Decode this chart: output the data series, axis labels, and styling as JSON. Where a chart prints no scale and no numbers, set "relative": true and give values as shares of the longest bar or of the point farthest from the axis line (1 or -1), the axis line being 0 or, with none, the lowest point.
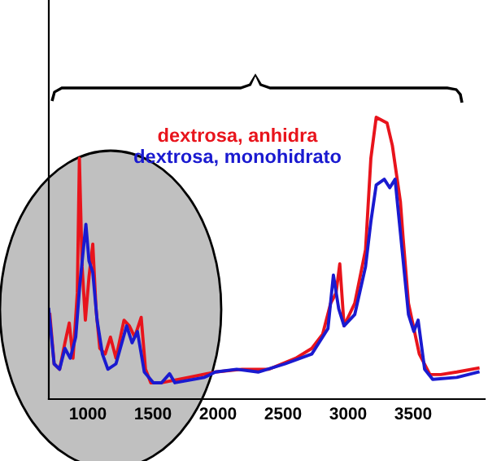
{
  "chart_data": {
    "type": "line",
    "relative": true,
    "legend": false,
    "grid": false,
    "marker": "none",
    "line_style": "solid",
    "tick_labels": "x",
    "xlim": [
      700,
      4050
    ],
    "xticks": [
      1000,
      1500,
      2000,
      2500,
      3000,
      3500
    ],
    "series": [
      {
        "name": "dextrosa, anhidra",
        "color": "#e8141c",
        "x": [
          708,
          741,
          783,
          824,
          857,
          886,
          919,
          935,
          956,
          981,
          1009,
          1038,
          1063,
          1092,
          1133,
          1174,
          1216,
          1278,
          1319,
          1360,
          1410,
          1443,
          1484,
          1566,
          1773,
          1979,
          2185,
          2392,
          2597,
          2721,
          2804,
          2866,
          2907,
          2936,
          2969,
          3051,
          3134,
          3175,
          3216,
          3299,
          3340,
          3402,
          3423,
          3464,
          3547,
          3629,
          3712,
          3835,
          3998
        ],
        "values": [
          0.3,
          0.125,
          0.106,
          0.2,
          0.27,
          0.145,
          0.376,
          0.855,
          0.47,
          0.28,
          0.434,
          0.55,
          0.32,
          0.18,
          0.16,
          0.22,
          0.145,
          0.28,
          0.26,
          0.22,
          0.29,
          0.106,
          0.058,
          0.058,
          0.077,
          0.096,
          0.106,
          0.106,
          0.145,
          0.18,
          0.23,
          0.34,
          0.376,
          0.48,
          0.26,
          0.34,
          0.53,
          0.855,
          1.0,
          0.98,
          0.9,
          0.7,
          0.57,
          0.34,
          0.16,
          0.087,
          0.087,
          0.096,
          0.11
        ]
      },
      {
        "name": "dextrosa, monohidrato",
        "color": "#1a1ad0",
        "x": [
          700,
          741,
          783,
          824,
          865,
          907,
          939,
          985,
          1009,
          1038,
          1071,
          1112,
          1154,
          1216,
          1298,
          1340,
          1381,
          1434,
          1504,
          1566,
          1628,
          1669,
          1896,
          1979,
          2144,
          2309,
          2515,
          2721,
          2845,
          2887,
          2928,
          2969,
          3051,
          3134,
          3175,
          3216,
          3278,
          3320,
          3361,
          3402,
          3464,
          3505,
          3538,
          3588,
          3650,
          3835,
          3998
        ],
        "values": [
          0.318,
          0.125,
          0.106,
          0.18,
          0.145,
          0.22,
          0.41,
          0.62,
          0.49,
          0.45,
          0.28,
          0.16,
          0.106,
          0.125,
          0.26,
          0.2,
          0.24,
          0.096,
          0.058,
          0.058,
          0.09,
          0.058,
          0.077,
          0.096,
          0.106,
          0.096,
          0.125,
          0.16,
          0.25,
          0.44,
          0.32,
          0.26,
          0.3,
          0.47,
          0.63,
          0.76,
          0.78,
          0.75,
          0.78,
          0.59,
          0.3,
          0.24,
          0.28,
          0.106,
          0.07,
          0.077,
          0.096
        ]
      }
    ]
  }
}
